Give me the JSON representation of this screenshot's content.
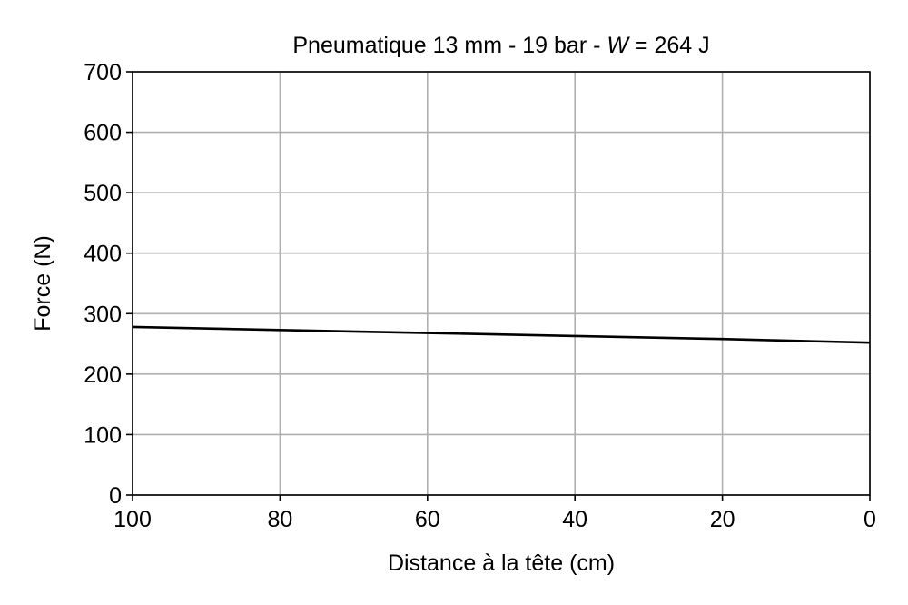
{
  "chart_data": {
    "type": "line",
    "title": "Pneumatique 13 mm - 19 bar - W = 264 J",
    "title_parts": {
      "prefix": "Pneumatique 13 mm - 19 bar - ",
      "symbol": "W",
      "suffix": " = 264 J"
    },
    "xlabel": "Distance à la tête (cm)",
    "ylabel": "Force (N)",
    "xlim": [
      100,
      0
    ],
    "ylim": [
      0,
      700
    ],
    "x_reversed": true,
    "xticks": [
      100,
      80,
      60,
      40,
      20,
      0
    ],
    "yticks": [
      0,
      100,
      200,
      300,
      400,
      500,
      600,
      700
    ],
    "grid": true,
    "series": [
      {
        "color": "#000000",
        "x": [
          100,
          80,
          60,
          40,
          20,
          0
        ],
        "y": [
          278,
          273,
          268,
          263,
          258,
          252
        ]
      }
    ]
  }
}
